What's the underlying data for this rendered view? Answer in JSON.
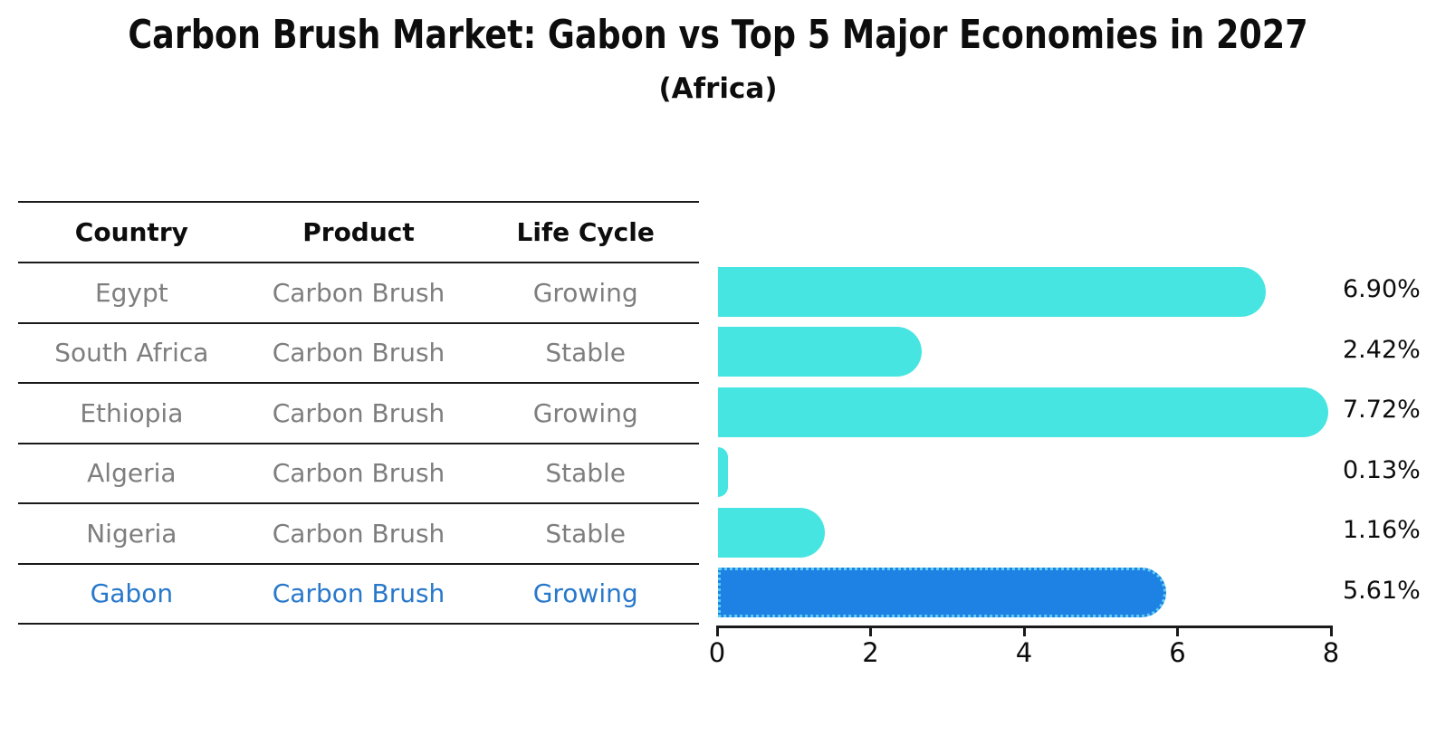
{
  "title": "Carbon Brush Market: Gabon vs Top 5 Major Economies in 2027",
  "subtitle": "(Africa)",
  "table": {
    "headers": [
      "Country",
      "Product",
      "Life Cycle"
    ],
    "rows": [
      {
        "country": "Egypt",
        "product": "Carbon Brush",
        "life_cycle": "Growing",
        "highlight": false
      },
      {
        "country": "South Africa",
        "product": "Carbon Brush",
        "life_cycle": "Stable",
        "highlight": false
      },
      {
        "country": "Ethiopia",
        "product": "Carbon Brush",
        "life_cycle": "Growing",
        "highlight": false
      },
      {
        "country": "Algeria",
        "product": "Carbon Brush",
        "life_cycle": "Stable",
        "highlight": false
      },
      {
        "country": "Nigeria",
        "product": "Carbon Brush",
        "life_cycle": "Stable",
        "highlight": false
      },
      {
        "country": "Gabon",
        "product": "Carbon Brush",
        "life_cycle": "Growing",
        "highlight": true
      }
    ]
  },
  "chart_data": {
    "type": "bar",
    "orientation": "horizontal",
    "categories": [
      "Egypt",
      "South Africa",
      "Ethiopia",
      "Algeria",
      "Nigeria",
      "Gabon"
    ],
    "values": [
      6.9,
      2.42,
      7.72,
      0.13,
      1.16,
      5.61
    ],
    "value_labels": [
      "6.90%",
      "2.42%",
      "7.72%",
      "0.13%",
      "1.16%",
      "5.61%"
    ],
    "xlim": [
      0,
      8
    ],
    "x_ticks": [
      0,
      2,
      4,
      6,
      8
    ],
    "highlight_index": 5,
    "grid": false,
    "legend_position": "none"
  },
  "colors": {
    "bar": "#47e5e1",
    "highlight_bar": "#1e81e4",
    "highlight_bar_border": "#5fcdf2",
    "highlight_text": "#2878cb",
    "row_text": "#7e7e7e",
    "header_text": "#0d0d0d",
    "axis": "#1a1a1a"
  }
}
